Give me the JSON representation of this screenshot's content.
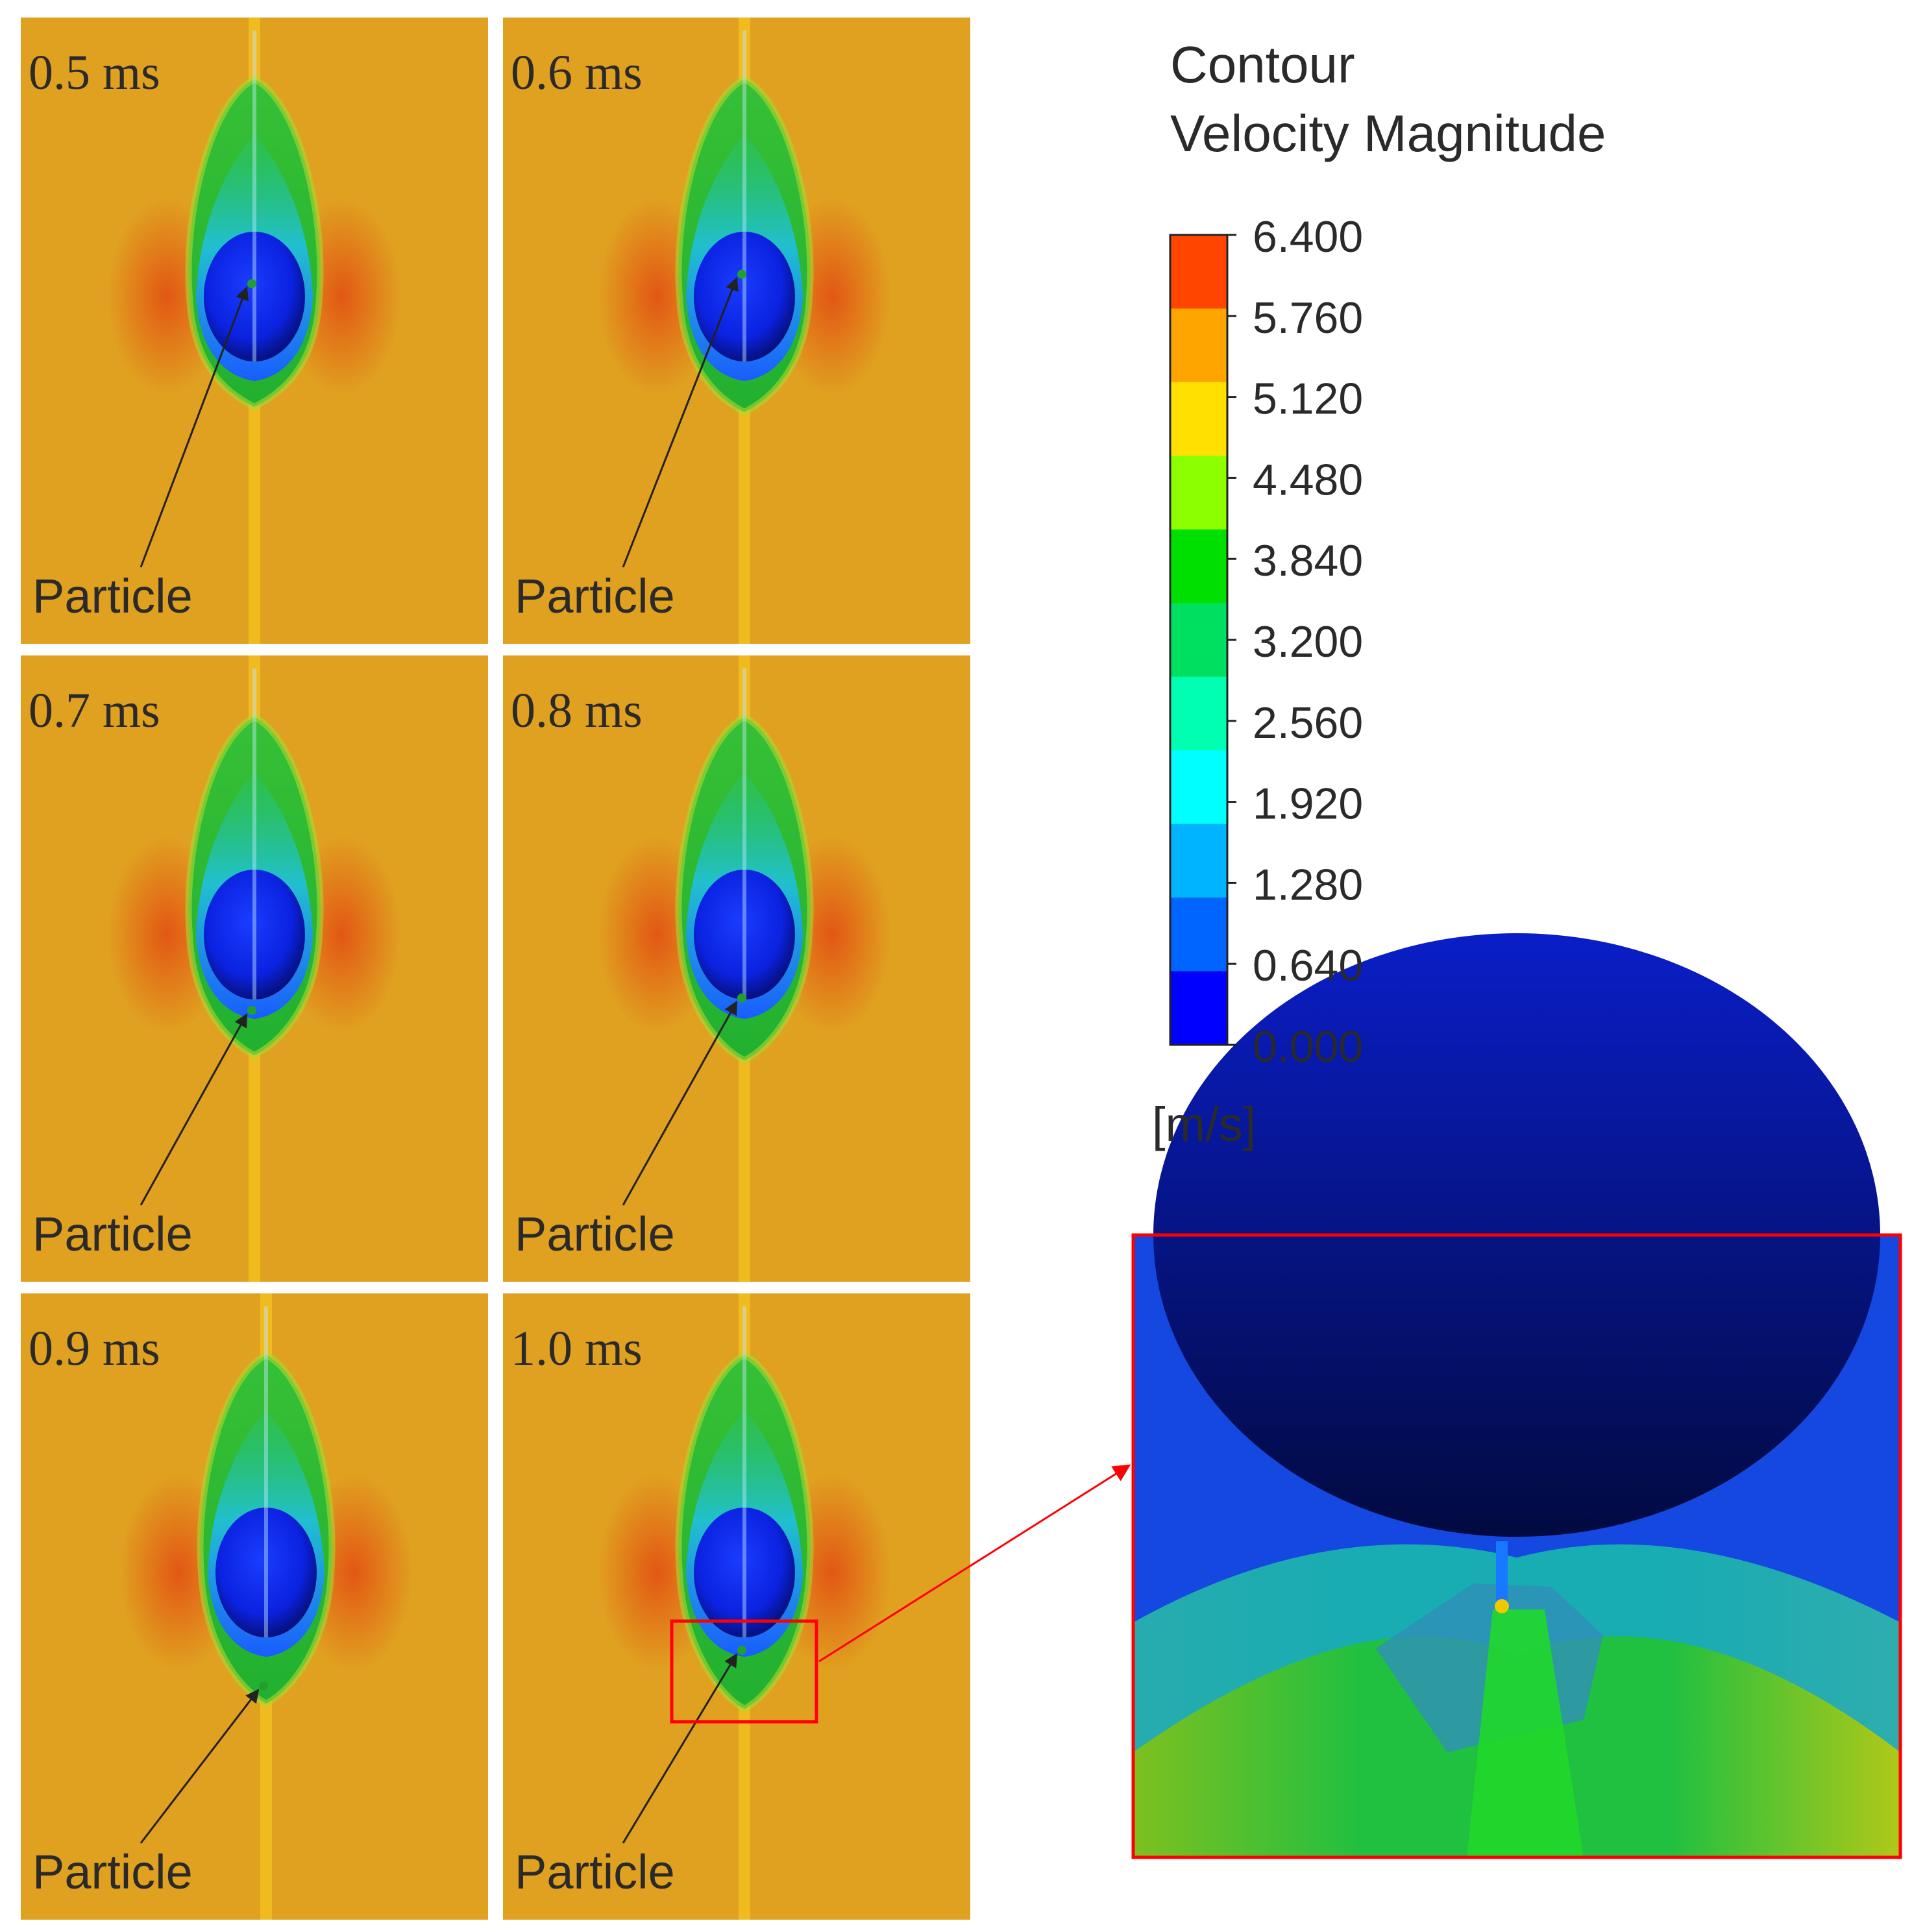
{
  "panels": [
    {
      "time_label": "0.5 ms",
      "particle_label": "Particle"
    },
    {
      "time_label": "0.6 ms",
      "particle_label": "Particle"
    },
    {
      "time_label": "0.7 ms",
      "particle_label": "Particle"
    },
    {
      "time_label": "0.8 ms",
      "particle_label": "Particle"
    },
    {
      "time_label": "0.9 ms",
      "particle_label": "Particle"
    },
    {
      "time_label": "1.0 ms",
      "particle_label": "Particle"
    }
  ],
  "legend": {
    "title_line1": "Contour",
    "title_line2": "Velocity Magnitude",
    "unit": "[m/s]",
    "ticks": [
      "6.400",
      "5.760",
      "5.120",
      "4.480",
      "3.840",
      "3.200",
      "2.560",
      "1.920",
      "1.280",
      "0.640",
      "0.000"
    ],
    "colors_top_to_bottom": [
      "#ff4500",
      "#ffa500",
      "#ffe000",
      "#8cff00",
      "#00e000",
      "#00e060",
      "#00ffb0",
      "#00ffff",
      "#00b4ff",
      "#0064ff",
      "#0000ff"
    ]
  },
  "colors": {
    "background_flow": "#e0a020",
    "wake_green": "#30c030",
    "bubble_blue": "#1030ff",
    "high_speed_red": "#e05010",
    "zoom_box": "#ff0000",
    "arrow": "#222222"
  }
}
